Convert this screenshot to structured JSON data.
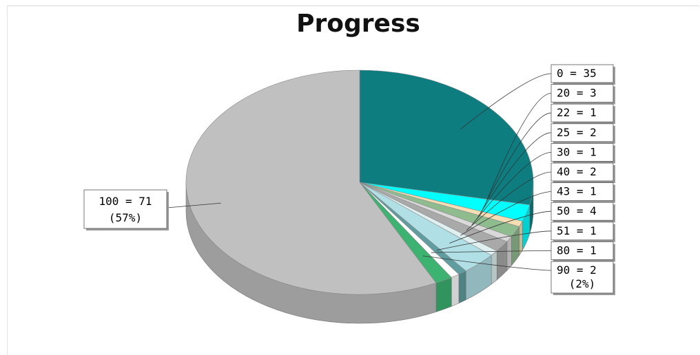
{
  "chart_data": {
    "type": "pie",
    "title": "Progress",
    "slices": [
      {
        "label": "0",
        "value": 35,
        "text": "0 = 35",
        "color": "#0E7D80"
      },
      {
        "label": "20",
        "value": 3,
        "text": "20 = 3",
        "color": "#00FFFF"
      },
      {
        "label": "22",
        "value": 1,
        "text": "22 = 1",
        "color": "#F5DEB3"
      },
      {
        "label": "25",
        "value": 2,
        "text": "25 = 2",
        "color": "#8FBC8F"
      },
      {
        "label": "30",
        "value": 1,
        "text": "30 = 1",
        "color": "#D9D9D9"
      },
      {
        "label": "40",
        "value": 2,
        "text": "40 = 2",
        "color": "#A9A9A9"
      },
      {
        "label": "43",
        "value": 1,
        "text": "43 = 1",
        "color": "#E0F0F0"
      },
      {
        "label": "50",
        "value": 4,
        "text": "50 = 4",
        "color": "#B0E0E6"
      },
      {
        "label": "51",
        "value": 1,
        "text": "51 = 1",
        "color": "#5F9EA0"
      },
      {
        "label": "80",
        "value": 1,
        "text": "80 = 1",
        "color": "#FFFFFF"
      },
      {
        "label": "90",
        "value": 2,
        "text": "90 = 2",
        "pct": "(2%)",
        "color": "#3CB371"
      },
      {
        "label": "100",
        "value": 71,
        "text": "100 = 71",
        "pct": "(57%)",
        "color": "#C0C0C0"
      }
    ],
    "legend": "none",
    "style": "3d-pie"
  }
}
